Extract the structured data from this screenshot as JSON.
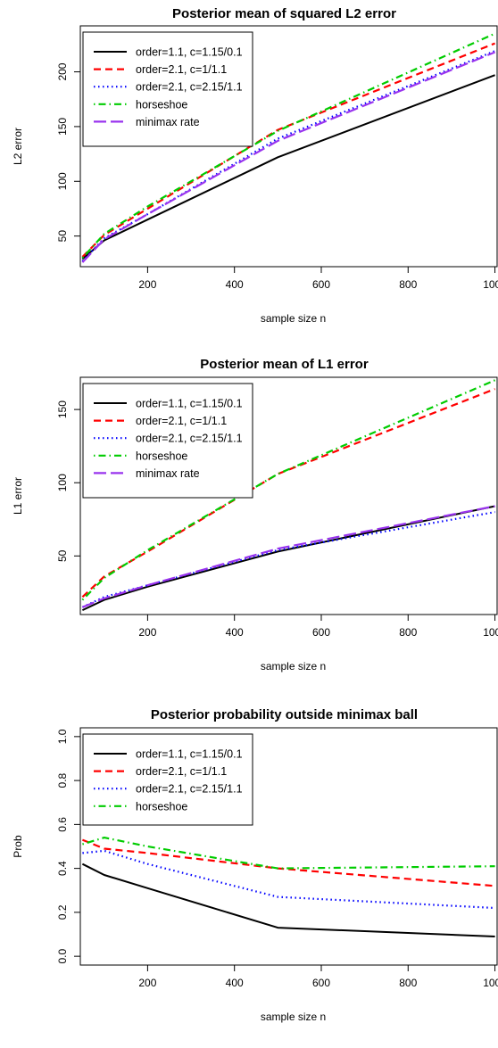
{
  "chart_data": [
    {
      "type": "line",
      "title": "Posterior mean of squared L2 error",
      "xlabel": "sample size n",
      "ylabel": "L2 error",
      "xlim": [
        45,
        1005
      ],
      "ylim": [
        22,
        242
      ],
      "xticks": [
        200,
        400,
        600,
        800,
        1000
      ],
      "yticks": [
        50,
        100,
        150,
        200
      ],
      "legend_position": "top-left",
      "x": [
        50,
        100,
        200,
        500,
        1000
      ],
      "series": [
        {
          "name": "order=1.1, c=1.15/0.1",
          "color": "#000000",
          "dash": "solid",
          "width": 2,
          "values": [
            29,
            46,
            65,
            122,
            197
          ]
        },
        {
          "name": "order=2.1, c=1/1.1",
          "color": "#ff0000",
          "dash": "dashed",
          "width": 2.2,
          "values": [
            31,
            51,
            75,
            147,
            226
          ]
        },
        {
          "name": "order=2.1, c=2.15/1.1",
          "color": "#0000ff",
          "dash": "dotted",
          "width": 2.2,
          "values": [
            27,
            48,
            70,
            139,
            219
          ]
        },
        {
          "name": "horseshoe",
          "color": "#00cc00",
          "dash": "dotdash",
          "width": 2.2,
          "values": [
            30,
            52,
            77,
            146,
            235
          ]
        },
        {
          "name": "minimax rate",
          "color": "#9933ee",
          "dash": "longdash",
          "width": 2.2,
          "values": [
            26,
            47,
            70,
            137,
            218
          ]
        }
      ]
    },
    {
      "type": "line",
      "title": "Posterior mean of L1 error",
      "xlabel": "sample size n",
      "ylabel": "L1 error",
      "xlim": [
        45,
        1005
      ],
      "ylim": [
        10,
        172
      ],
      "xticks": [
        200,
        400,
        600,
        800,
        1000
      ],
      "yticks": [
        50,
        100,
        150
      ],
      "legend_position": "top-left",
      "x": [
        50,
        100,
        200,
        500,
        1000
      ],
      "series": [
        {
          "name": "order=1.1, c=1.15/0.1",
          "color": "#000000",
          "dash": "solid",
          "width": 2,
          "values": [
            13,
            20,
            29,
            53,
            84
          ]
        },
        {
          "name": "order=2.1, c=1/1.1",
          "color": "#ff0000",
          "dash": "dashed",
          "width": 2.2,
          "values": [
            22,
            36,
            53,
            106,
            164
          ]
        },
        {
          "name": "order=2.1, c=2.15/1.1",
          "color": "#0000ff",
          "dash": "dotted",
          "width": 2.2,
          "values": [
            15,
            22,
            30,
            54,
            80
          ]
        },
        {
          "name": "horseshoe",
          "color": "#00cc00",
          "dash": "dotdash",
          "width": 2.2,
          "values": [
            20,
            35,
            54,
            106,
            170
          ]
        },
        {
          "name": "minimax rate",
          "color": "#9933ee",
          "dash": "longdash",
          "width": 2.2,
          "values": [
            15,
            21,
            30,
            55,
            84
          ]
        }
      ]
    },
    {
      "type": "line",
      "title": "Posterior probability outside minimax ball",
      "xlabel": "sample size n",
      "ylabel": "Prob",
      "xlim": [
        45,
        1005
      ],
      "ylim": [
        -0.04,
        1.04
      ],
      "xticks": [
        200,
        400,
        600,
        800,
        1000
      ],
      "yticks": [
        0.0,
        0.2,
        0.4,
        0.6,
        0.8,
        1.0
      ],
      "ytick_labels": [
        "0.0",
        "0.2",
        "0.4",
        "0.6",
        "0.8",
        "1.0"
      ],
      "legend_position": "top-left",
      "x": [
        50,
        100,
        200,
        500,
        1000
      ],
      "series": [
        {
          "name": "order=1.1, c=1.15/0.1",
          "color": "#000000",
          "dash": "solid",
          "width": 2,
          "values": [
            0.42,
            0.37,
            0.31,
            0.13,
            0.09
          ]
        },
        {
          "name": "order=2.1, c=1/1.1",
          "color": "#ff0000",
          "dash": "dashed",
          "width": 2.2,
          "values": [
            0.53,
            0.49,
            0.47,
            0.4,
            0.32
          ]
        },
        {
          "name": "order=2.1, c=2.15/1.1",
          "color": "#0000ff",
          "dash": "dotted",
          "width": 2.2,
          "values": [
            0.47,
            0.48,
            0.42,
            0.27,
            0.22
          ]
        },
        {
          "name": "horseshoe",
          "color": "#00cc00",
          "dash": "dotdash",
          "width": 2.2,
          "values": [
            0.51,
            0.54,
            0.5,
            0.4,
            0.41
          ]
        }
      ]
    }
  ]
}
